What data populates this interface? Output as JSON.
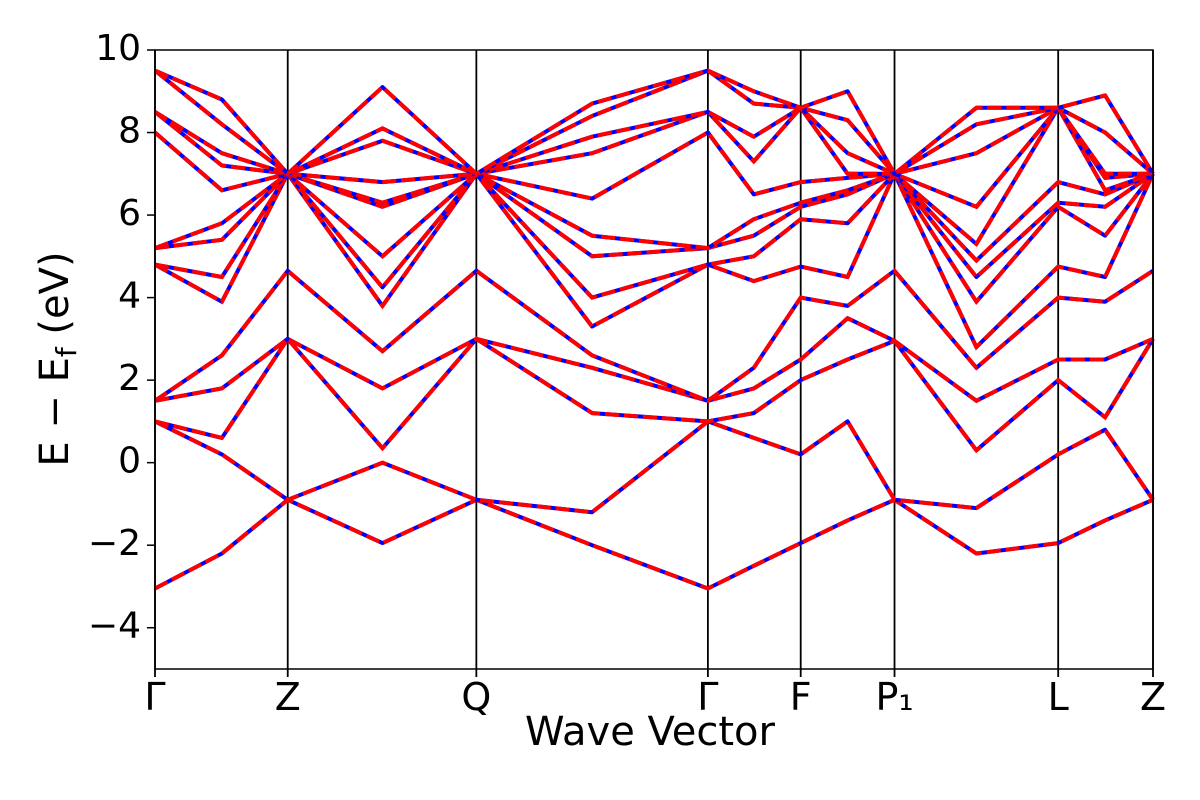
{
  "chart_data": {
    "type": "line",
    "xlabel": "Wave Vector",
    "ylabel": {
      "text": "E − E",
      "sub": "f",
      "suffix": " (eV)"
    },
    "xlim": [
      0,
      1
    ],
    "ylim": [
      -5,
      10
    ],
    "xticks": [
      {
        "value": 0,
        "label": "Γ"
      },
      {
        "value": 0.133,
        "label": "Z"
      },
      {
        "value": 0.322,
        "label": "Q"
      },
      {
        "value": 0.554,
        "label": "Γ"
      },
      {
        "value": 0.647,
        "label": "F"
      },
      {
        "value": 0.741,
        "label": "P₁"
      },
      {
        "value": 0.905,
        "label": "L"
      },
      {
        "value": 1,
        "label": "Z"
      }
    ],
    "yticks": [
      {
        "value": -4,
        "label": "−4"
      },
      {
        "value": -2,
        "label": "−2"
      },
      0,
      2,
      4,
      6,
      8,
      10
    ],
    "color": "#0000ff",
    "dash_color": "#ff0000",
    "x": [
      0,
      0.067,
      0.133,
      0.228,
      0.322,
      0.438,
      0.554,
      0.6,
      0.647,
      0.694,
      0.741,
      0.823,
      0.905,
      0.952,
      1
    ],
    "series": [
      {
        "values": [
          -3.05,
          -2.2,
          -0.9,
          -1.95,
          -0.9,
          -2.0,
          -3.05,
          -2.5,
          -1.95,
          -1.4,
          -0.9,
          -2.2,
          -1.95,
          -1.4,
          -0.9
        ]
      },
      {
        "values": [
          1.0,
          0.2,
          -0.9,
          0.0,
          -0.9,
          -1.2,
          1.0,
          0.6,
          0.2,
          1.0,
          -0.9,
          -1.1,
          0.2,
          0.8,
          -0.9
        ]
      },
      {
        "values": [
          1.0,
          0.6,
          3.0,
          0.35,
          3.0,
          1.2,
          1.0,
          1.2,
          2.0,
          2.5,
          2.95,
          0.3,
          2.0,
          1.1,
          3.0
        ]
      },
      {
        "values": [
          1.5,
          1.8,
          3.0,
          1.8,
          3.0,
          2.3,
          1.5,
          1.8,
          2.5,
          3.5,
          2.95,
          1.5,
          2.5,
          2.5,
          3.0
        ]
      },
      {
        "values": [
          1.5,
          2.6,
          4.65,
          2.7,
          4.65,
          2.6,
          1.5,
          2.3,
          4.0,
          3.8,
          4.65,
          2.3,
          4.0,
          3.9,
          4.65
        ]
      },
      {
        "values": [
          4.8,
          3.9,
          7,
          3.8,
          7,
          3.3,
          4.8,
          4.4,
          4.75,
          4.5,
          7,
          2.8,
          4.75,
          4.5,
          7
        ]
      },
      {
        "values": [
          4.8,
          4.5,
          7,
          4.25,
          7,
          4.0,
          4.8,
          5.0,
          5.9,
          5.8,
          7,
          3.9,
          6.2,
          5.5,
          7
        ]
      },
      {
        "values": [
          5.2,
          5.4,
          7,
          5.0,
          7,
          5.0,
          5.2,
          5.5,
          6.2,
          6.5,
          7,
          4.5,
          6.3,
          6.2,
          7
        ]
      },
      {
        "values": [
          5.2,
          5.8,
          7,
          6.2,
          7,
          5.5,
          5.2,
          5.9,
          6.3,
          6.6,
          7,
          4.9,
          6.8,
          6.5,
          7
        ]
      },
      {
        "values": [
          8.0,
          6.6,
          7,
          6.3,
          7,
          6.4,
          8.0,
          6.5,
          6.8,
          6.9,
          7,
          5.3,
          8.6,
          6.6,
          7
        ]
      },
      {
        "values": [
          8.5,
          7.2,
          7,
          6.8,
          7,
          7.5,
          8.5,
          7.3,
          8.6,
          7.0,
          7,
          6.2,
          8.6,
          6.9,
          7
        ]
      },
      {
        "values": [
          8.5,
          7.5,
          7,
          7.8,
          7,
          7.9,
          8.5,
          7.9,
          8.6,
          7.5,
          7,
          7.5,
          8.6,
          7.0,
          7
        ]
      },
      {
        "values": [
          9.5,
          8.2,
          7,
          8.1,
          7,
          8.4,
          9.5,
          8.7,
          8.6,
          8.3,
          7,
          8.2,
          8.6,
          8.0,
          7
        ]
      },
      {
        "values": [
          9.5,
          8.8,
          7,
          9.1,
          7,
          8.7,
          9.5,
          9.0,
          8.6,
          9.0,
          7,
          8.6,
          8.6,
          8.9,
          7
        ]
      }
    ]
  }
}
